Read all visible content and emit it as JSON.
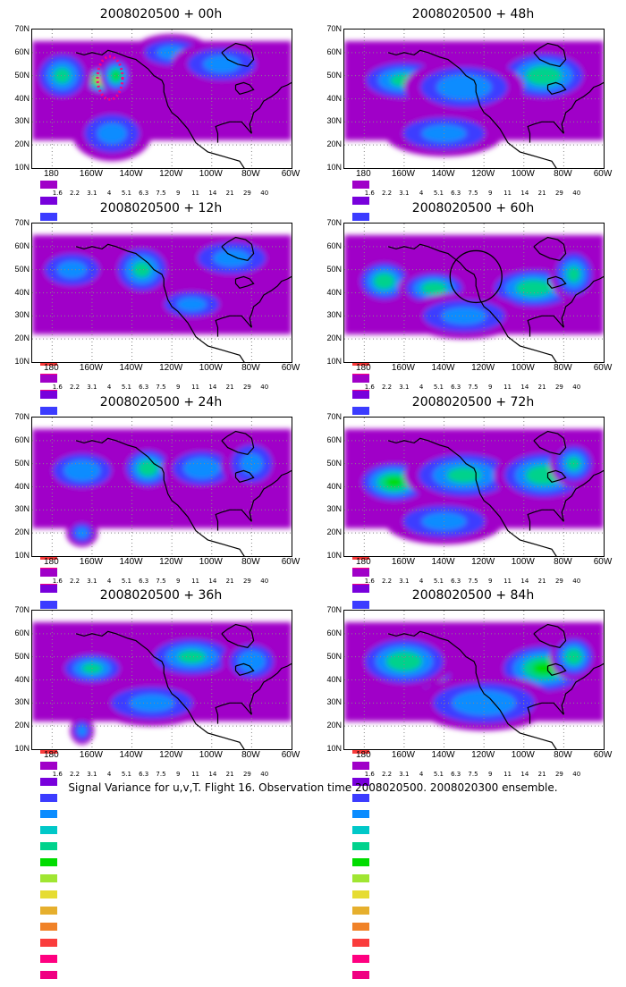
{
  "caption": "Signal Variance for u,v,T. Flight 16. Observation time 2008020500. 2008020300 ensemble.",
  "lat_labels": [
    "70N",
    "60N",
    "50N",
    "40N",
    "30N",
    "20N",
    "10N"
  ],
  "lon_labels": [
    "180",
    "160W",
    "140W",
    "120W",
    "100W",
    "80W",
    "60W"
  ],
  "colorbar": {
    "labels": [
      "1.6",
      "2.2",
      "3.1",
      "4",
      "5.1",
      "6.3",
      "7.5",
      "9",
      "11",
      "14",
      "21",
      "29",
      "40"
    ],
    "colors": [
      "#a000c8",
      "#7800dc",
      "#3c3cff",
      "#0a8cff",
      "#00c8c8",
      "#00d28c",
      "#00dc00",
      "#a0e632",
      "#e6dc32",
      "#e6af2d",
      "#f08228",
      "#fa3c3c",
      "#ff0080",
      "#f00082"
    ]
  },
  "chart_data": [
    {
      "type": "heatmap",
      "title": "2008020500 + 00h",
      "lead": "00h",
      "xlim": [
        170,
        300
      ],
      "ylim": [
        10,
        70
      ],
      "annotation": "dotted magenta outline around maximum near 50N 148W",
      "blobs": [
        [
          205,
          48,
          10,
          6,
          6
        ],
        [
          212,
          50,
          8,
          8,
          4
        ],
        [
          185,
          50,
          15,
          12,
          3
        ],
        [
          240,
          60,
          20,
          8,
          2
        ],
        [
          265,
          55,
          25,
          10,
          2
        ],
        [
          210,
          25,
          20,
          12,
          2
        ]
      ]
    },
    {
      "type": "heatmap",
      "title": "2008020500 + 12h",
      "lead": "12h",
      "xlim": [
        170,
        300
      ],
      "ylim": [
        10,
        70
      ],
      "blobs": [
        [
          222,
          50,
          9,
          7,
          5
        ],
        [
          225,
          50,
          16,
          12,
          3
        ],
        [
          190,
          50,
          20,
          10,
          2
        ],
        [
          270,
          55,
          25,
          10,
          2
        ],
        [
          250,
          35,
          20,
          8,
          2
        ]
      ]
    },
    {
      "type": "heatmap",
      "title": "2008020500 + 24h",
      "lead": "24h",
      "xlim": [
        170,
        300
      ],
      "ylim": [
        10,
        70
      ],
      "blobs": [
        [
          228,
          48,
          14,
          10,
          3.5
        ],
        [
          195,
          47,
          20,
          10,
          2.5
        ],
        [
          255,
          48,
          20,
          10,
          2.5
        ],
        [
          280,
          50,
          15,
          12,
          2
        ],
        [
          195,
          20,
          8,
          6,
          2
        ]
      ]
    },
    {
      "type": "heatmap",
      "title": "2008020500 + 36h",
      "lead": "36h",
      "xlim": [
        170,
        300
      ],
      "ylim": [
        10,
        70
      ],
      "blobs": [
        [
          200,
          45,
          18,
          8,
          3
        ],
        [
          250,
          50,
          25,
          10,
          3
        ],
        [
          280,
          48,
          15,
          10,
          2.5
        ],
        [
          195,
          18,
          6,
          6,
          2
        ],
        [
          230,
          30,
          30,
          10,
          2
        ]
      ]
    },
    {
      "type": "heatmap",
      "title": "2008020500 + 48h",
      "lead": "48h",
      "xlim": [
        170,
        300
      ],
      "ylim": [
        10,
        70
      ],
      "blobs": [
        [
          200,
          48,
          25,
          10,
          3
        ],
        [
          270,
          50,
          25,
          12,
          3.5
        ],
        [
          230,
          45,
          30,
          12,
          2.5
        ],
        [
          220,
          25,
          30,
          10,
          2
        ]
      ]
    },
    {
      "type": "heatmap",
      "title": "2008020500 + 60h",
      "lead": "60h",
      "xlim": [
        170,
        300
      ],
      "ylim": [
        10,
        70
      ],
      "annotation": "black circle near 48N 124W",
      "blobs": [
        [
          190,
          45,
          15,
          10,
          3.5
        ],
        [
          215,
          42,
          18,
          8,
          3.5
        ],
        [
          265,
          42,
          25,
          10,
          3.5
        ],
        [
          285,
          48,
          12,
          12,
          3
        ],
        [
          230,
          30,
          30,
          10,
          2
        ]
      ]
    },
    {
      "type": "heatmap",
      "title": "2008020500 + 72h",
      "lead": "72h",
      "xlim": [
        170,
        300
      ],
      "ylim": [
        10,
        70
      ],
      "blobs": [
        [
          195,
          42,
          20,
          10,
          4
        ],
        [
          230,
          45,
          30,
          12,
          3
        ],
        [
          270,
          45,
          25,
          12,
          3.5
        ],
        [
          285,
          50,
          12,
          10,
          3
        ],
        [
          220,
          25,
          30,
          10,
          2
        ]
      ]
    },
    {
      "type": "heatmap",
      "title": "2008020500 + 84h",
      "lead": "84h",
      "xlim": [
        170,
        300
      ],
      "ylim": [
        10,
        70
      ],
      "blobs": [
        [
          213,
          43,
          12,
          8,
          5
        ],
        [
          200,
          48,
          25,
          12,
          3.5
        ],
        [
          270,
          45,
          25,
          12,
          4
        ],
        [
          285,
          50,
          12,
          10,
          3.5
        ],
        [
          240,
          30,
          35,
          12,
          2.5
        ]
      ]
    }
  ]
}
